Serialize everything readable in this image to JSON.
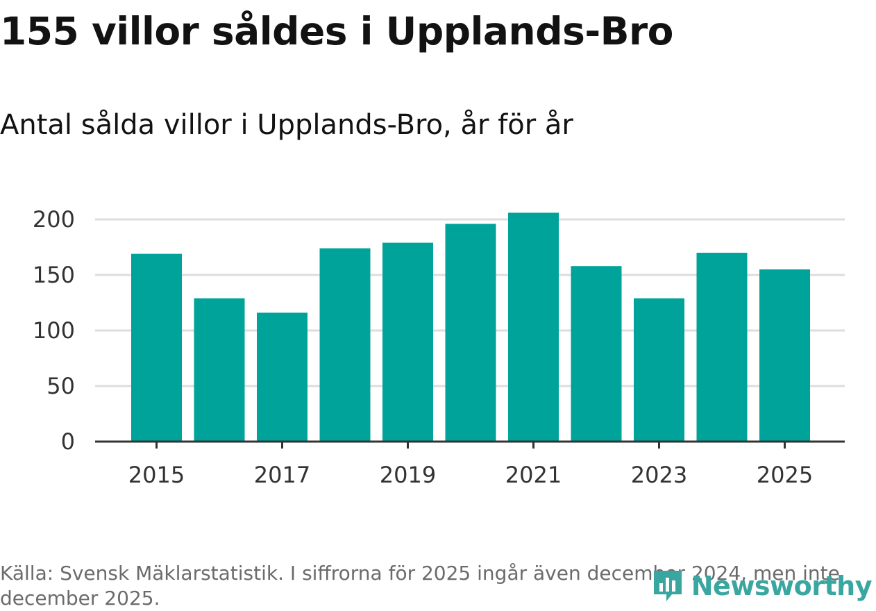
{
  "title": "155 villor såldes i Upplands-Bro",
  "subtitle": "Antal sålda villor i Upplands-Bro, år för år",
  "source": "Källa: Svensk Mäklarstatistik. I siffrorna för 2025 ingår även december 2024, men inte december 2025.",
  "logo": {
    "text": "Newsworthy",
    "icon": "newsworthy-chart-icon",
    "color": "#3aa6a0"
  },
  "colors": {
    "bar": "#00a39a",
    "grid": "#dddddd",
    "axis": "#333333"
  },
  "chart_data": {
    "type": "bar",
    "title": "Antal sålda villor i Upplands-Bro, år för år",
    "xlabel": "",
    "ylabel": "",
    "categories": [
      "2015",
      "2016",
      "2017",
      "2018",
      "2019",
      "2020",
      "2021",
      "2022",
      "2023",
      "2024",
      "2025"
    ],
    "values": [
      169,
      129,
      116,
      174,
      179,
      196,
      206,
      158,
      129,
      170,
      155
    ],
    "ylim": [
      0,
      200
    ],
    "yticks": [
      0,
      50,
      100,
      150,
      200
    ],
    "ytick_labels": [
      "0",
      "50",
      "100",
      "150",
      "200"
    ],
    "xtick_labels": [
      "2015",
      "2017",
      "2019",
      "2021",
      "2023",
      "2025"
    ],
    "grid": true
  }
}
